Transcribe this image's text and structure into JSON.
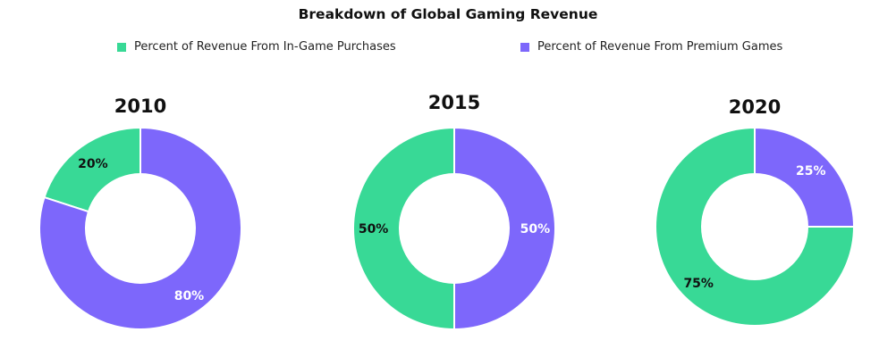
{
  "colors": {
    "in_game": "#38d996",
    "premium": "#7d67fb",
    "hole": "#ffffff"
  },
  "legend": {
    "in_game": "Percent of Revenue From In-Game Purchases",
    "premium": "Percent of Revenue From Premium Games"
  },
  "chart_data": [
    {
      "type": "pie",
      "title": "Breakdown of Global Gaming Revenue",
      "subtitle": "2010",
      "series": [
        {
          "name": "Percent of Revenue From In-Game Purchases",
          "value": 20,
          "label": "20%"
        },
        {
          "name": "Percent of Revenue From Premium Games",
          "value": 80,
          "label": "80%"
        }
      ]
    },
    {
      "type": "pie",
      "title": "Breakdown of Global Gaming Revenue",
      "subtitle": "2015",
      "series": [
        {
          "name": "Percent of Revenue From In-Game Purchases",
          "value": 50,
          "label": "50%"
        },
        {
          "name": "Percent of Revenue From Premium Games",
          "value": 50,
          "label": "50%"
        }
      ]
    },
    {
      "type": "pie",
      "title": "Breakdown of Global Gaming Revenue",
      "subtitle": "2020",
      "series": [
        {
          "name": "Percent of Revenue From In-Game Purchases",
          "value": 75,
          "label": "75%"
        },
        {
          "name": "Percent of Revenue From Premium Games",
          "value": 25,
          "label": "25%"
        }
      ]
    }
  ]
}
